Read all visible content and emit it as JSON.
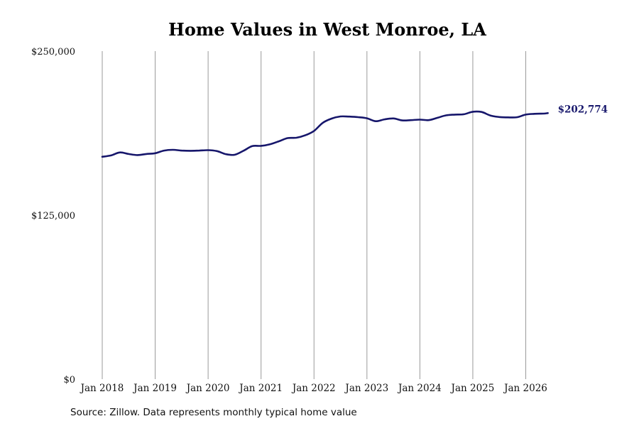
{
  "colors": {
    "line": "#16166b",
    "grid": "#9a9a9a",
    "text": "#111111"
  },
  "source": "Source: Zillow. Data represents monthly typical home value",
  "chart_data": {
    "type": "line",
    "title": "Home Values in West Monroe, LA",
    "xlabel": "",
    "ylabel": "",
    "ylim": [
      0,
      250000
    ],
    "yticks": [
      0,
      125000,
      250000
    ],
    "ytick_labels": [
      "$0",
      "$125,000",
      "$250,000"
    ],
    "xtick_labels": [
      "Jan 2018",
      "Jan 2019",
      "Jan 2020",
      "Jan 2021",
      "Jan 2022",
      "Jan 2023",
      "Jan 2024",
      "Jan 2025",
      "Jan 2026"
    ],
    "xlim": [
      "2018-01",
      "2026-06"
    ],
    "grid": "vertical",
    "end_label": "$202,774",
    "series": [
      {
        "values": [
          [
            "2018-01",
            169500
          ],
          [
            "2018-03",
            170500
          ],
          [
            "2018-05",
            172800
          ],
          [
            "2018-07",
            171600
          ],
          [
            "2018-09",
            170800
          ],
          [
            "2018-11",
            171600
          ],
          [
            "2019-01",
            172200
          ],
          [
            "2019-03",
            174200
          ],
          [
            "2019-05",
            174800
          ],
          [
            "2019-07",
            174200
          ],
          [
            "2019-09",
            174000
          ],
          [
            "2019-11",
            174200
          ],
          [
            "2020-01",
            174500
          ],
          [
            "2020-03",
            173800
          ],
          [
            "2020-05",
            171500
          ],
          [
            "2020-07",
            171000
          ],
          [
            "2020-09",
            174000
          ],
          [
            "2020-11",
            177600
          ],
          [
            "2021-01",
            177800
          ],
          [
            "2021-03",
            179000
          ],
          [
            "2021-05",
            181200
          ],
          [
            "2021-07",
            183700
          ],
          [
            "2021-09",
            184000
          ],
          [
            "2021-11",
            185800
          ],
          [
            "2022-01",
            189200
          ],
          [
            "2022-03",
            195400
          ],
          [
            "2022-05",
            198600
          ],
          [
            "2022-07",
            200200
          ],
          [
            "2022-09",
            200100
          ],
          [
            "2022-11",
            199700
          ],
          [
            "2023-01",
            198800
          ],
          [
            "2023-03",
            196600
          ],
          [
            "2023-05",
            198000
          ],
          [
            "2023-07",
            198700
          ],
          [
            "2023-09",
            197200
          ],
          [
            "2023-11",
            197400
          ],
          [
            "2024-01",
            197800
          ],
          [
            "2024-03",
            197400
          ],
          [
            "2024-05",
            199200
          ],
          [
            "2024-07",
            201100
          ],
          [
            "2024-09",
            201600
          ],
          [
            "2024-11",
            201900
          ],
          [
            "2025-01",
            203800
          ],
          [
            "2025-03",
            203600
          ],
          [
            "2025-05",
            200900
          ],
          [
            "2025-07",
            199800
          ],
          [
            "2025-09",
            199500
          ],
          [
            "2025-11",
            199600
          ],
          [
            "2026-01",
            201600
          ],
          [
            "2026-03",
            202200
          ],
          [
            "2026-05",
            202400
          ],
          [
            "2026-06",
            202774
          ]
        ]
      }
    ]
  }
}
